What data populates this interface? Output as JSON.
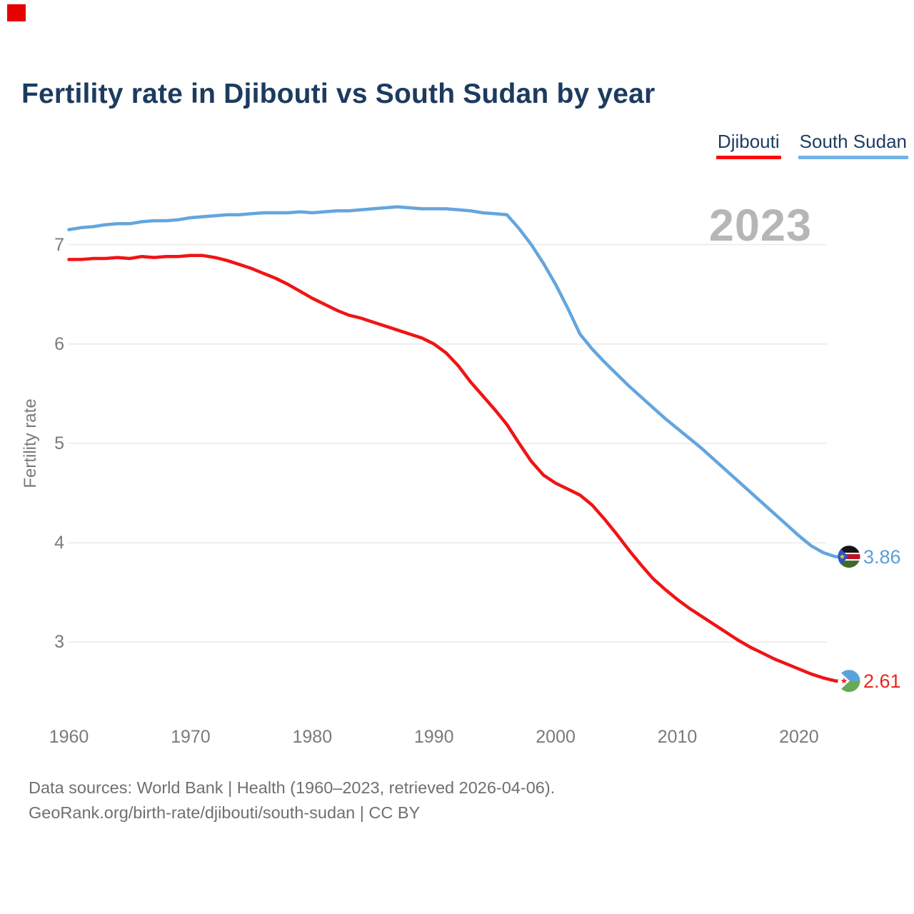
{
  "title": "Fertility rate in Djibouti vs South Sudan by year",
  "watermark": "2023",
  "legend": {
    "items": [
      {
        "label": "Djibouti",
        "color": "#fb0a0a"
      },
      {
        "label": "South Sudan",
        "color": "#74b2e8"
      }
    ]
  },
  "y_axis": {
    "label": "Fertility rate",
    "ticks": [
      7,
      6,
      5,
      4,
      3
    ]
  },
  "x_axis": {
    "ticks": [
      1960,
      1970,
      1980,
      1990,
      2000,
      2010,
      2020
    ]
  },
  "footer": {
    "line1": "Data sources: World Bank | Health (1960–2023, retrieved 2026-04-06).",
    "line2": "GeoRank.org/birth-rate/djibouti/south-sudan | CC BY"
  },
  "colors": {
    "red_marker": "#e60000",
    "grid": "#e9e9e9",
    "axis_text": "#7a7a7a",
    "title_text": "#1c3b5e",
    "watermark_text": "#b6b6b6"
  },
  "chart_data": {
    "type": "line",
    "title": "Fertility rate in Djibouti vs South Sudan by year",
    "xlabel": "",
    "ylabel": "Fertility rate",
    "grid": "horizontal",
    "legend_position": "top-right",
    "ylim": [
      2.3,
      7.5
    ],
    "yticks": [
      3,
      4,
      5,
      6,
      7
    ],
    "xticks": [
      1960,
      1970,
      1980,
      1990,
      2000,
      2010,
      2020
    ],
    "x": [
      1960,
      1961,
      1962,
      1963,
      1964,
      1965,
      1966,
      1967,
      1968,
      1969,
      1970,
      1971,
      1972,
      1973,
      1974,
      1975,
      1976,
      1977,
      1978,
      1979,
      1980,
      1981,
      1982,
      1983,
      1984,
      1985,
      1986,
      1987,
      1988,
      1989,
      1990,
      1991,
      1992,
      1993,
      1994,
      1995,
      1996,
      1997,
      1998,
      1999,
      2000,
      2001,
      2002,
      2003,
      2004,
      2005,
      2006,
      2007,
      2008,
      2009,
      2010,
      2011,
      2012,
      2013,
      2014,
      2015,
      2016,
      2017,
      2018,
      2019,
      2020,
      2021,
      2022,
      2023
    ],
    "series": [
      {
        "name": "Djibouti",
        "color": "#f01414",
        "end_label": "2.61",
        "end_label_color": "#e8251f",
        "end_year": 2023,
        "values": [
          6.85,
          6.85,
          6.86,
          6.86,
          6.87,
          6.86,
          6.88,
          6.87,
          6.88,
          6.88,
          6.89,
          6.89,
          6.87,
          6.84,
          6.8,
          6.76,
          6.71,
          6.66,
          6.6,
          6.53,
          6.46,
          6.4,
          6.34,
          6.29,
          6.26,
          6.22,
          6.18,
          6.14,
          6.1,
          6.06,
          6.0,
          5.91,
          5.78,
          5.62,
          5.48,
          5.34,
          5.19,
          5.0,
          4.82,
          4.68,
          4.6,
          4.54,
          4.48,
          4.38,
          4.24,
          4.09,
          3.93,
          3.78,
          3.64,
          3.53,
          3.43,
          3.34,
          3.26,
          3.18,
          3.1,
          3.02,
          2.95,
          2.89,
          2.83,
          2.78,
          2.73,
          2.68,
          2.64,
          2.61
        ]
      },
      {
        "name": "South Sudan",
        "color": "#64a5de",
        "end_label": "3.86",
        "end_label_color": "#5b9fd9",
        "end_year": 2023,
        "values": [
          7.15,
          7.17,
          7.18,
          7.2,
          7.21,
          7.21,
          7.23,
          7.24,
          7.24,
          7.25,
          7.27,
          7.28,
          7.29,
          7.3,
          7.3,
          7.31,
          7.32,
          7.32,
          7.32,
          7.33,
          7.32,
          7.33,
          7.34,
          7.34,
          7.35,
          7.36,
          7.37,
          7.38,
          7.37,
          7.36,
          7.36,
          7.36,
          7.35,
          7.34,
          7.32,
          7.31,
          7.3,
          7.16,
          7.0,
          6.81,
          6.6,
          6.36,
          6.1,
          5.95,
          5.82,
          5.7,
          5.58,
          5.47,
          5.36,
          5.25,
          5.15,
          5.05,
          4.95,
          4.84,
          4.73,
          4.62,
          4.51,
          4.4,
          4.29,
          4.18,
          4.07,
          3.97,
          3.9,
          3.86
        ]
      }
    ]
  }
}
